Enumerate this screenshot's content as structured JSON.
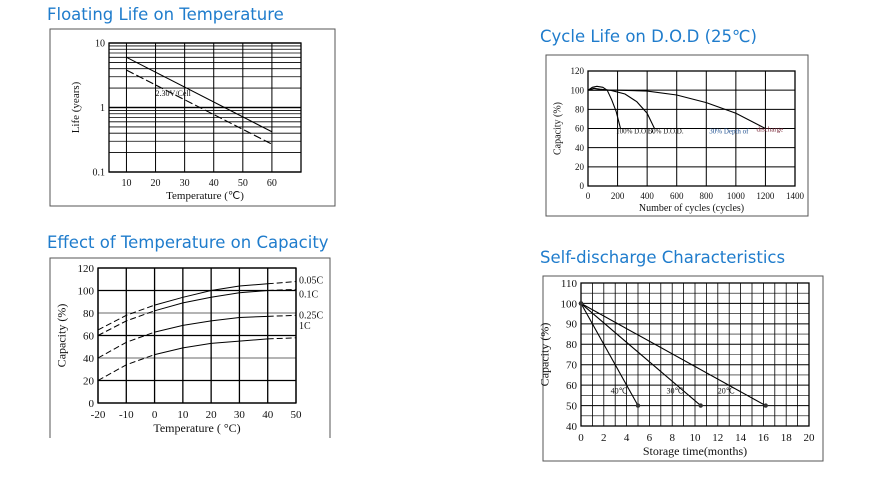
{
  "chart_data": [
    {
      "id": "floating",
      "type": "line",
      "title": "Floating Life on Temperature",
      "xlabel": "Temperature (℃)",
      "ylabel": "Life (years)",
      "xlim": [
        4,
        70
      ],
      "ylim": [
        0.1,
        10
      ],
      "yscale": "log",
      "xticks": [
        10,
        20,
        30,
        40,
        50,
        60
      ],
      "yticks": [
        {
          "v": 10,
          "label": "10"
        },
        {
          "v": 1,
          "label": "1"
        },
        {
          "v": 0.1,
          "label": "0.1"
        }
      ],
      "grid": true,
      "series": [
        {
          "x": [
            10,
            60
          ],
          "y": [
            6,
            0.42
          ],
          "style": "solid"
        },
        {
          "x": [
            10,
            60
          ],
          "y": [
            3.8,
            0.27
          ],
          "style": "dashed-start"
        }
      ],
      "annotations": [
        {
          "text": "2.30V/Cell",
          "x": 20,
          "y": 1.5
        }
      ]
    },
    {
      "id": "cycle",
      "type": "line",
      "title": "Cycle Life on D.O.D (25℃)",
      "xlabel": "Number of cycles (cycles)",
      "ylabel": "Capacity (%)",
      "xlim": [
        0,
        1400
      ],
      "ylim": [
        0,
        120
      ],
      "xticks": [
        0,
        200,
        400,
        600,
        800,
        1000,
        1200,
        1400
      ],
      "yticks": [
        0,
        20,
        40,
        60,
        80,
        100,
        120
      ],
      "grid": true,
      "series": [
        {
          "name": "100% D.O.D.",
          "x": [
            0,
            30,
            60,
            100,
            130,
            160,
            190,
            220
          ],
          "y": [
            100,
            103,
            104,
            103,
            100,
            90,
            78,
            60
          ]
        },
        {
          "name": "50% D.O.D.",
          "x": [
            0,
            40,
            80,
            150,
            250,
            330,
            400,
            450
          ],
          "y": [
            100,
            102,
            101,
            100,
            96,
            88,
            76,
            60
          ]
        },
        {
          "name": "30% Depth of discharge",
          "x": [
            0,
            200,
            400,
            600,
            800,
            1000,
            1200
          ],
          "y": [
            100,
            100,
            99,
            95,
            87,
            76,
            60
          ]
        }
      ],
      "annotations": [
        {
          "text": "100% D.O.D.",
          "x": 190,
          "y": 55
        },
        {
          "text": "50% D.O.D.",
          "x": 410,
          "y": 55
        },
        {
          "text": "30% Depth of",
          "x": 820,
          "y": 55,
          "color": "#1f4f8f"
        },
        {
          "text": "discharge",
          "x": 1140,
          "y": 57,
          "color": "#7a2a3a"
        }
      ]
    },
    {
      "id": "tempcap",
      "type": "line",
      "title": "Effect of Temperature on Capacity",
      "xlabel": "Temperature ( °C)",
      "ylabel": "Capacity (%)",
      "xlim": [
        -20,
        50
      ],
      "ylim": [
        0,
        120
      ],
      "xticks": [
        -20,
        -10,
        0,
        10,
        20,
        30,
        40,
        50
      ],
      "yticks": [
        0,
        20,
        40,
        60,
        80,
        100,
        120
      ],
      "grid": true,
      "series": [
        {
          "name": "0.05C",
          "x": [
            -20,
            -10,
            0,
            10,
            20,
            30,
            40,
            50
          ],
          "y": [
            65,
            78,
            87,
            94,
            100,
            104,
            106,
            108
          ]
        },
        {
          "name": "0.1C",
          "x": [
            -20,
            -10,
            0,
            10,
            20,
            30,
            40,
            50
          ],
          "y": [
            60,
            73,
            82,
            89,
            94,
            98,
            100,
            101
          ]
        },
        {
          "name": "0.25C",
          "x": [
            -20,
            -10,
            0,
            10,
            20,
            30,
            40,
            50
          ],
          "y": [
            40,
            54,
            63,
            69,
            73,
            76,
            77,
            78
          ]
        },
        {
          "name": "1C",
          "x": [
            -20,
            -10,
            0,
            10,
            20,
            30,
            40,
            50
          ],
          "y": [
            20,
            34,
            43,
            49,
            53,
            55,
            57,
            58
          ]
        }
      ]
    },
    {
      "id": "selfdis",
      "type": "line",
      "title": "Self-discharge Characteristics",
      "xlabel": "Storage time(months)",
      "ylabel": "Capacity (%)",
      "xlim": [
        0,
        20
      ],
      "ylim": [
        40,
        110
      ],
      "xticks": [
        0,
        2,
        4,
        6,
        8,
        10,
        12,
        14,
        16,
        18,
        20
      ],
      "yticks": [
        40,
        50,
        60,
        70,
        80,
        90,
        100,
        110
      ],
      "grid": true,
      "series": [
        {
          "name": "40℃",
          "x": [
            0,
            5
          ],
          "y": [
            100,
            50
          ]
        },
        {
          "name": "30℃",
          "x": [
            0,
            10.5
          ],
          "y": [
            100,
            50
          ]
        },
        {
          "name": "20℃",
          "x": [
            0,
            16.2
          ],
          "y": [
            100,
            50
          ]
        }
      ],
      "annotations": [
        {
          "text": "40℃",
          "x": 2.6,
          "y": 56
        },
        {
          "text": "30℃",
          "x": 7.5,
          "y": 56
        },
        {
          "text": "20℃",
          "x": 12,
          "y": 56
        }
      ]
    }
  ]
}
